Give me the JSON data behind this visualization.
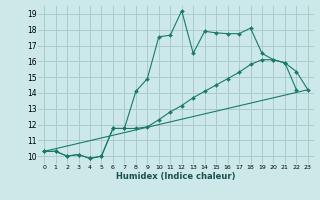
{
  "xlabel": "Humidex (Indice chaleur)",
  "bg_color": "#cce8e8",
  "grid_color": "#aacccc",
  "line_color": "#1a7a6a",
  "xlim": [
    -0.5,
    23.5
  ],
  "ylim": [
    9.5,
    19.5
  ],
  "yticks": [
    10,
    11,
    12,
    13,
    14,
    15,
    16,
    17,
    18,
    19
  ],
  "xticks": [
    0,
    1,
    2,
    3,
    4,
    5,
    6,
    7,
    8,
    9,
    10,
    11,
    12,
    13,
    14,
    15,
    16,
    17,
    18,
    19,
    20,
    21,
    22,
    23
  ],
  "line1_x": [
    0,
    1,
    2,
    3,
    4,
    5,
    6,
    7,
    8,
    9,
    10,
    11,
    12,
    13,
    14,
    15,
    16,
    17,
    18,
    19,
    20,
    21,
    22
  ],
  "line1_y": [
    10.3,
    10.3,
    10.0,
    10.1,
    9.85,
    10.0,
    11.75,
    11.75,
    14.1,
    14.9,
    17.55,
    17.65,
    19.2,
    16.5,
    17.9,
    17.8,
    17.75,
    17.75,
    18.1,
    16.5,
    16.1,
    15.9,
    14.2
  ],
  "line2_x": [
    0,
    1,
    2,
    3,
    4,
    5,
    6,
    7,
    8,
    9,
    10,
    11,
    12,
    13,
    14,
    15,
    16,
    17,
    18,
    19,
    20,
    21,
    22,
    23
  ],
  "line2_y": [
    10.3,
    10.3,
    10.0,
    10.1,
    9.85,
    10.0,
    11.75,
    11.75,
    11.75,
    11.85,
    12.3,
    12.8,
    13.2,
    13.7,
    14.1,
    14.5,
    14.9,
    15.3,
    15.8,
    16.1,
    16.1,
    15.9,
    15.35,
    14.2
  ],
  "line3_x": [
    0,
    23
  ],
  "line3_y": [
    10.3,
    14.2
  ]
}
